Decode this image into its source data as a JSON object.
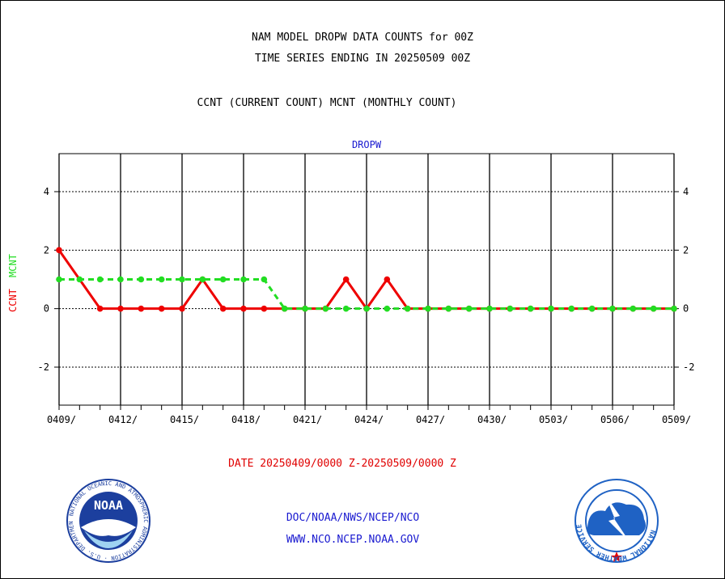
{
  "header": {
    "title_line1": "NAM MODEL DROPW DATA COUNTS for 00Z",
    "title_line2": "TIME SERIES ENDING IN 20250509 00Z",
    "legend_note": "CCNT (CURRENT COUNT) MCNT (MONTHLY COUNT)"
  },
  "footer": {
    "date_range": "DATE 20250409/0000 Z-20250509/0000 Z",
    "org_line": "DOC/NOAA/NWS/NCEP/NCO",
    "url_line": "WWW.NCO.NCEP.NOAA.GOV",
    "noaa_logo_text": "NOAA",
    "noaa_ring_text": "NATIONAL OCEANIC AND ATMOSPHERIC ADMINISTRATION · U.S. DEPARTMENT OF COMMERCE",
    "nws_ring_text": "NATIONAL WEATHER SERVICE"
  },
  "colors": {
    "ccnt": "#ee0000",
    "mcnt": "#22dd22",
    "label_blue": "#1a1ad0",
    "noaa_blue": "#1c3f9e",
    "nws_blue": "#1f62c4"
  },
  "chart_data": {
    "type": "line",
    "title": "DROPW",
    "ylabel_ccnt": "CCNT",
    "ylabel_mcnt": "MCNT",
    "ylim": [
      -3.3,
      5.3
    ],
    "yticks": [
      -2,
      0,
      2,
      4
    ],
    "ytick_labels": [
      "-2",
      "0",
      "2",
      "4"
    ],
    "x_tick_labels": [
      "0409/",
      "0412/",
      "0415/",
      "0418/",
      "0421/",
      "0424/",
      "0427/",
      "0430/",
      "0503/",
      "0506/",
      "0509/"
    ],
    "x_tick_days": [
      0,
      3,
      6,
      9,
      12,
      15,
      18,
      21,
      24,
      27,
      30
    ],
    "grid": true,
    "series": [
      {
        "name": "CCNT",
        "x": [
          0,
          2,
          3,
          4,
          5,
          6,
          7,
          8,
          9,
          10,
          11,
          12,
          13,
          14,
          15,
          16,
          17,
          18,
          19,
          20,
          21,
          22,
          23,
          24,
          25,
          26,
          27,
          28,
          29,
          30
        ],
        "values": [
          2,
          0,
          0,
          0,
          0,
          0,
          1,
          0,
          0,
          0,
          0,
          0,
          0,
          1,
          0,
          1,
          0,
          0,
          0,
          0,
          0,
          0,
          0,
          0,
          0,
          0,
          0,
          0,
          0,
          0
        ]
      },
      {
        "name": "MCNT",
        "x": [
          0,
          1,
          2,
          3,
          4,
          5,
          6,
          7,
          8,
          9,
          10,
          11,
          12,
          13,
          14,
          15,
          16,
          17,
          18,
          19,
          20,
          21,
          22,
          23,
          24,
          25,
          26,
          27,
          28,
          29,
          30
        ],
        "values": [
          1,
          1,
          1,
          1,
          1,
          1,
          1,
          1,
          1,
          1,
          1,
          0,
          0,
          0,
          0,
          0,
          0,
          0,
          0,
          0,
          0,
          0,
          0,
          0,
          0,
          0,
          0,
          0,
          0,
          0,
          0
        ]
      }
    ]
  }
}
